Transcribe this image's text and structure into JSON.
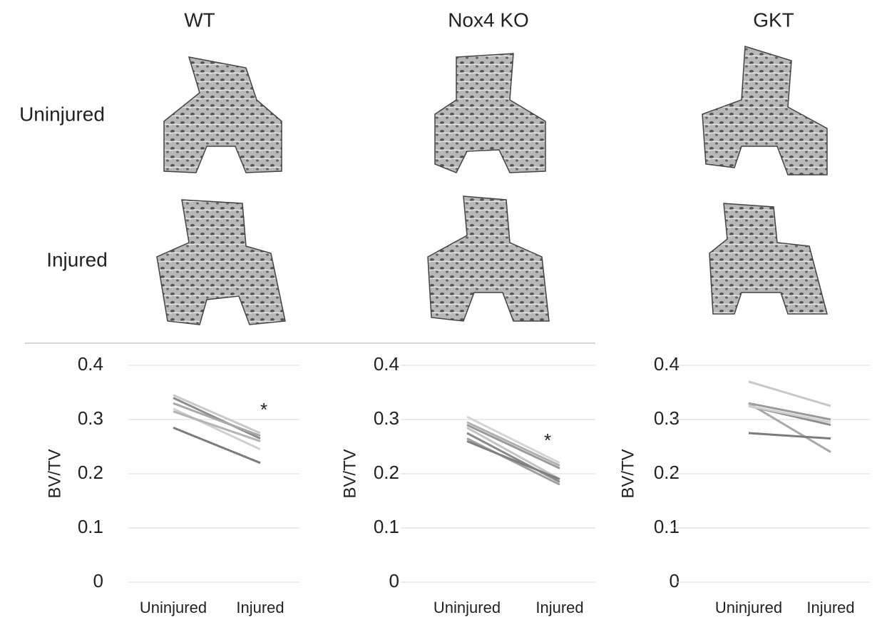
{
  "panel": {
    "columns": [
      "WT",
      "Nox4 KO",
      "GKT"
    ],
    "rows": [
      "Uninjured",
      "Injured"
    ]
  },
  "chart_data": [
    {
      "type": "line",
      "ylabel": "BV/TV",
      "categories": [
        "Uninjured",
        "Injured"
      ],
      "annotation": "*",
      "ylim": [
        0,
        0.4
      ],
      "yticks": [
        0,
        0.1,
        0.2,
        0.3,
        0.4
      ],
      "grid": true,
      "series": [
        {
          "color": "#c8c8c8",
          "values": [
            0.345,
            0.275
          ]
        },
        {
          "color": "#8c8c8c",
          "values": [
            0.34,
            0.265
          ]
        },
        {
          "color": "#a8a8a8",
          "values": [
            0.33,
            0.27
          ]
        },
        {
          "color": "#d0d0d0",
          "values": [
            0.32,
            0.245
          ]
        },
        {
          "color": "#b4b4b4",
          "values": [
            0.315,
            0.26
          ]
        },
        {
          "color": "#7c7c7c",
          "values": [
            0.285,
            0.22
          ]
        }
      ]
    },
    {
      "type": "line",
      "ylabel": "BV/TV",
      "categories": [
        "Uninjured",
        "Injured"
      ],
      "annotation": "*",
      "ylim": [
        0,
        0.4
      ],
      "yticks": [
        0,
        0.1,
        0.2,
        0.3,
        0.4
      ],
      "grid": true,
      "series": [
        {
          "color": "#d4d4d4",
          "values": [
            0.305,
            0.22
          ]
        },
        {
          "color": "#b0b0b0",
          "values": [
            0.295,
            0.215
          ]
        },
        {
          "color": "#9a9a9a",
          "values": [
            0.29,
            0.21
          ]
        },
        {
          "color": "#c4c4c4",
          "values": [
            0.285,
            0.19
          ]
        },
        {
          "color": "#8a8a8a",
          "values": [
            0.275,
            0.185
          ]
        },
        {
          "color": "#a0a0a0",
          "values": [
            0.265,
            0.18
          ]
        },
        {
          "color": "#808080",
          "values": [
            0.26,
            0.19
          ]
        }
      ]
    },
    {
      "type": "line",
      "ylabel": "BV/TV",
      "categories": [
        "Uninjured",
        "Injured"
      ],
      "ylim": [
        0,
        0.4
      ],
      "yticks": [
        0,
        0.1,
        0.2,
        0.3,
        0.4
      ],
      "grid": true,
      "series": [
        {
          "color": "#c8c8c8",
          "values": [
            0.37,
            0.325
          ]
        },
        {
          "color": "#9a9a9a",
          "values": [
            0.33,
            0.3
          ]
        },
        {
          "color": "#a8a8a8",
          "values": [
            0.33,
            0.24
          ]
        },
        {
          "color": "#8c8c8c",
          "values": [
            0.325,
            0.29
          ]
        },
        {
          "color": "#d0d0d0",
          "values": [
            0.325,
            0.295
          ]
        },
        {
          "color": "#7c7c7c",
          "values": [
            0.275,
            0.265
          ]
        }
      ]
    }
  ]
}
